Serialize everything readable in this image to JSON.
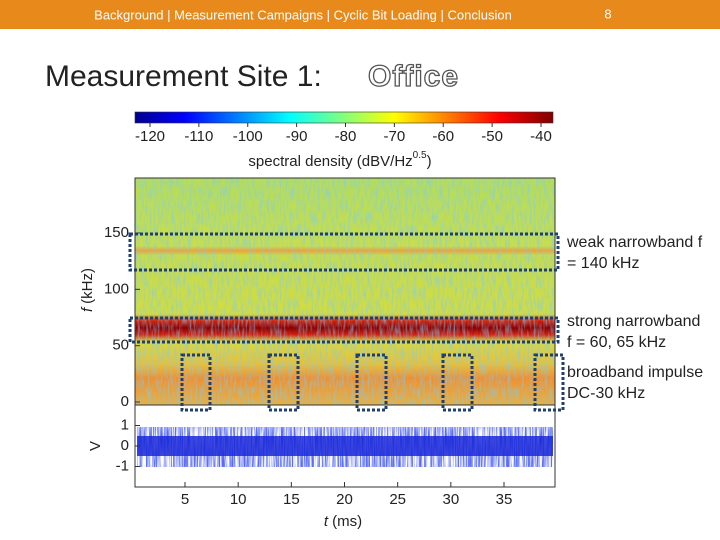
{
  "header": {
    "nav": "Background | Measurement Campaigns | Cyclic Bit Loading | Conclusion",
    "page_number": "8"
  },
  "title": {
    "text": "Measurement Site 1:",
    "highlight": "Office"
  },
  "colorbar": {
    "ticks": [
      -120,
      -110,
      -100,
      -90,
      -80,
      -70,
      -60,
      -50,
      -40
    ],
    "label": "spectral density (dBV/Hz",
    "label_sup": "0.5",
    "label_end": ")"
  },
  "spectrogram": {
    "yticks": [
      0,
      50,
      100,
      150
    ],
    "ylabel_var": "f",
    "ylabel_unit": "(kHz)"
  },
  "waveform": {
    "yticks": [
      1,
      0,
      -1
    ],
    "ylabel": "V",
    "xticks": [
      5,
      10,
      15,
      20,
      25,
      30,
      35
    ],
    "xlabel_var": "t",
    "xlabel_unit": "(ms)"
  },
  "annotations": [
    {
      "lines": [
        "weak narrowband f",
        "= 140 kHz"
      ]
    },
    {
      "lines": [
        "strong narrowband",
        "f = 60, 65 kHz"
      ]
    },
    {
      "lines": [
        "broadband impulse",
        "DC-30 kHz"
      ]
    }
  ]
}
